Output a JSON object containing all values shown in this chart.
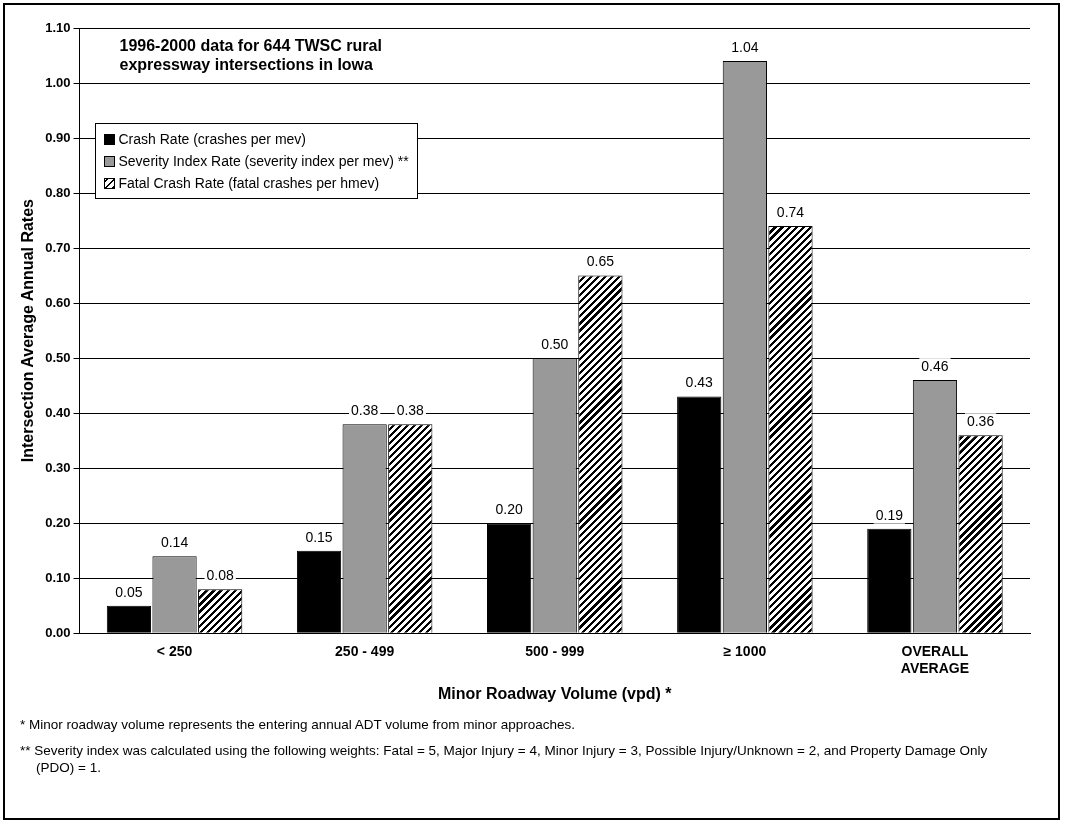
{
  "chart_data": {
    "type": "bar",
    "title": "1996-2000 data for 644 TWSC rural expressway intersections in Iowa",
    "xlabel": "Minor Roadway Volume (vpd) *",
    "ylabel": "Intersection Average Annual Rates",
    "categories": [
      "< 250",
      "250 - 499",
      "500 - 999",
      "≥ 1000",
      "OVERALL\nAVERAGE"
    ],
    "series": [
      {
        "name": "Crash Rate (crashes per mev)",
        "color": "#000000",
        "values": [
          0.05,
          0.15,
          0.2,
          0.43,
          0.19
        ],
        "value_labels": [
          "0.05",
          "0.15",
          "0.20",
          "0.43",
          "0.19"
        ]
      },
      {
        "name": "Severity Index Rate (severity index per mev) **",
        "color": "#999999",
        "values": [
          0.14,
          0.38,
          0.5,
          1.04,
          0.46
        ],
        "value_labels": [
          "0.14",
          "0.38",
          "0.50",
          "1.04",
          "0.46"
        ]
      },
      {
        "name": "Fatal Crash Rate (fatal crashes per hmev)",
        "color": "#000000",
        "values": [
          0.08,
          0.38,
          0.65,
          0.74,
          0.36
        ],
        "value_labels": [
          "0.08",
          "0.38",
          "0.65",
          "0.74",
          "0.36"
        ]
      }
    ],
    "ylim": [
      0,
      1.1
    ],
    "yticks": [
      {
        "value": 0,
        "label": "0.00"
      },
      {
        "value": 0.1,
        "label": "0.10"
      },
      {
        "value": 0.2,
        "label": "0.20"
      },
      {
        "value": 0.3,
        "label": "0.30"
      },
      {
        "value": 0.4,
        "label": "0.40"
      },
      {
        "value": 0.5,
        "label": "0.50"
      },
      {
        "value": 0.6,
        "label": "0.60"
      },
      {
        "value": 0.7,
        "label": "0.70"
      },
      {
        "value": 0.8,
        "label": "0.80"
      },
      {
        "value": 0.9,
        "label": "0.90"
      },
      {
        "value": 1.0,
        "label": "1.00"
      },
      {
        "value": 1.1,
        "label": "1.10"
      }
    ],
    "grid": "y",
    "legend": "top left",
    "annotations": [
      "*  Minor roadway volume represents the entering annual ADT volume from minor approaches.",
      "**  Severity index was calculated using the following weights:  Fatal = 5, Major Injury = 4, Minor Injury = 3, Possible Injury/Unknown = 2, and Property Damage Only (PDO) = 1."
    ]
  }
}
